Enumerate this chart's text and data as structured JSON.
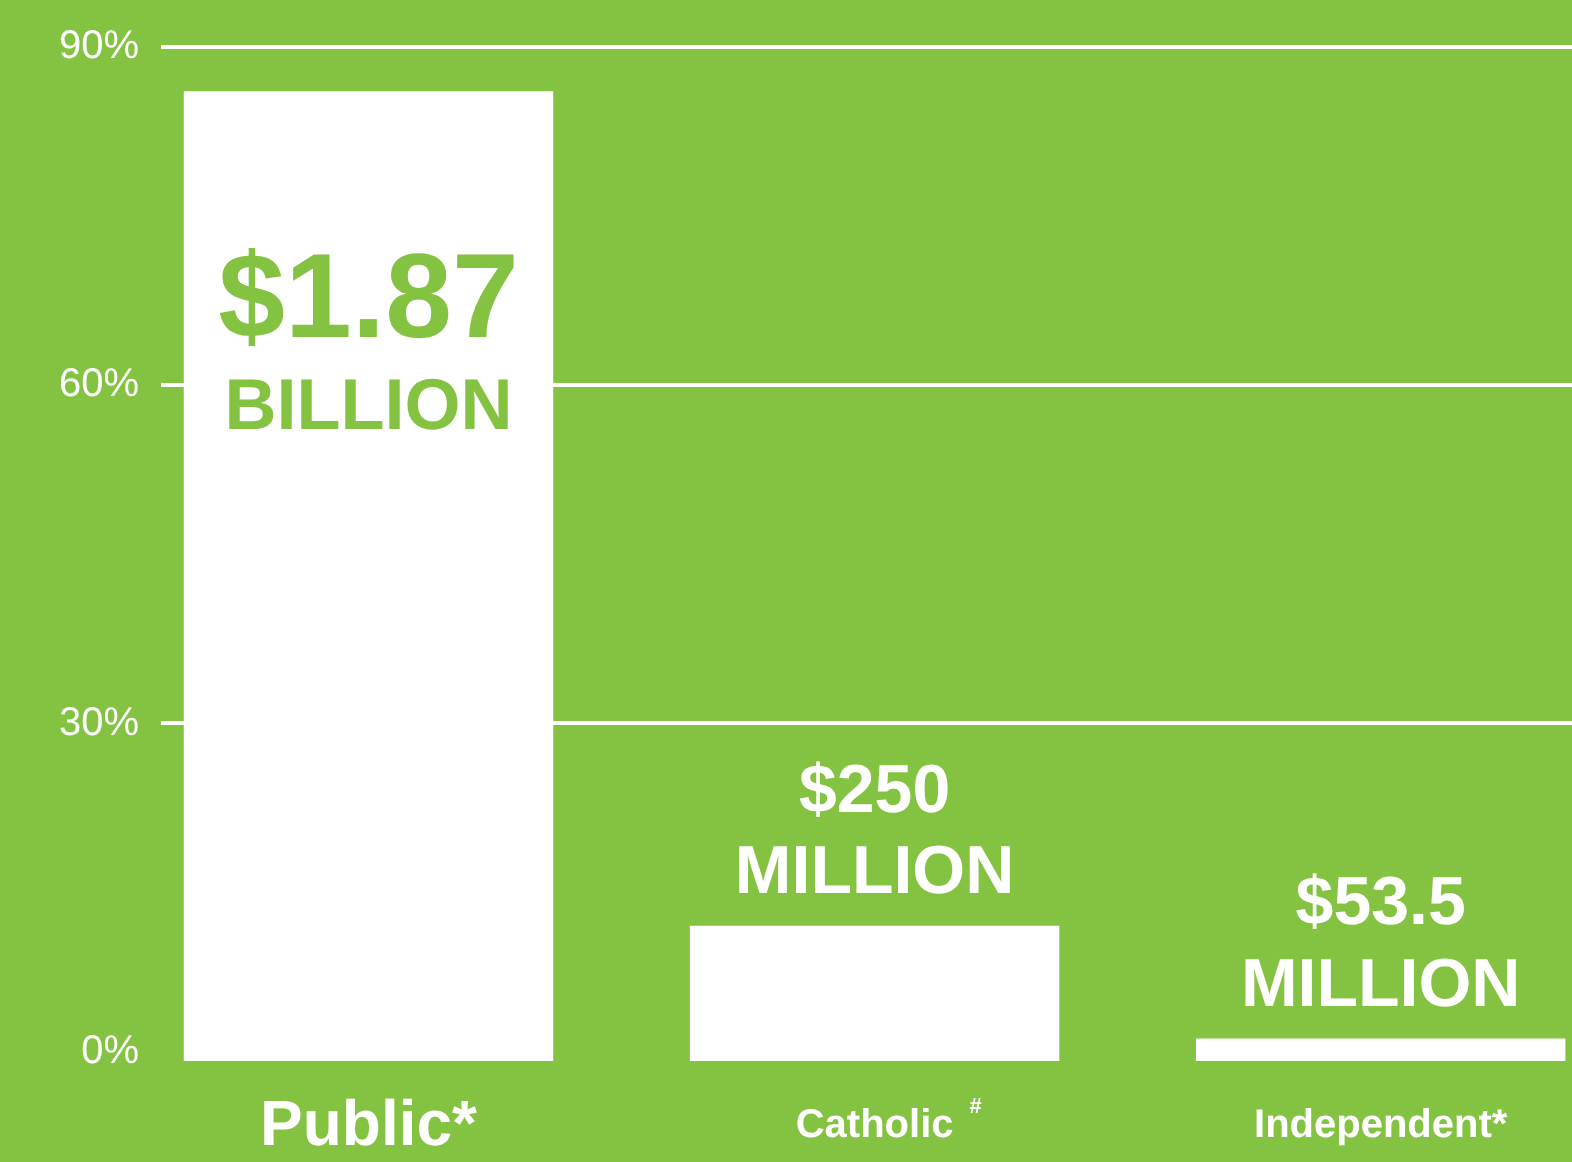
{
  "chart_data": {
    "type": "bar",
    "categories": [
      "Public*",
      "Catholic$^{#}$",
      "Independent*"
    ],
    "values": [
      86,
      12,
      2
    ],
    "color": "#ffffff",
    "annotations": [
      {
        "text": "$1.87\nBILLION",
        "x": "Public*",
        "y": 86
      },
      {
        "text": "$250\nMILLION",
        "x": "Catholic$^{#}$",
        "y": 12
      },
      {
        "text": "$53.5\nMILLION",
        "x": "Independent*",
        "y": 2
      }
    ],
    "ylim": [
      0,
      94
    ],
    "yticks": [
      {
        "value": 0,
        "label": "0%"
      },
      {
        "value": 30,
        "label": "30%"
      },
      {
        "value": 60,
        "label": "60%"
      },
      {
        "value": 90,
        "label": "90%"
      }
    ],
    "grid": "y"
  }
}
